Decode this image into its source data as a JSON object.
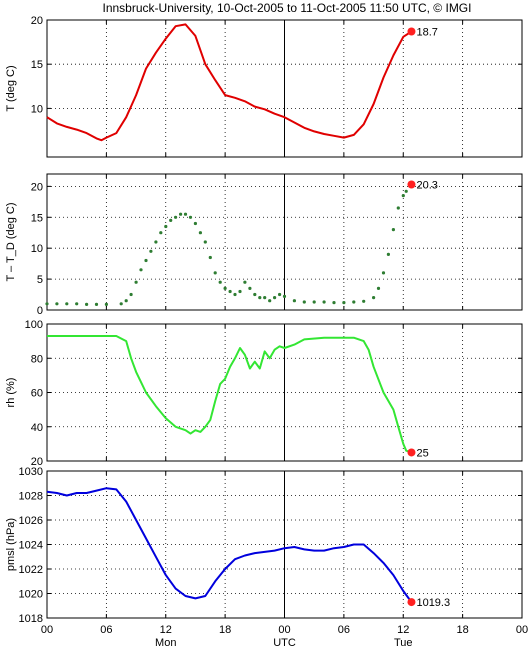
{
  "title": "Innsbruck-University, 10-Oct-2005 to 11-Oct-2005 11:50 UTC, © IMGI",
  "x_axis": {
    "range": [
      0,
      48
    ],
    "ticks": [
      0,
      6,
      12,
      18,
      24,
      30,
      36,
      42,
      48
    ],
    "tick_labels": [
      "00",
      "06",
      "12",
      "18",
      "00",
      "06",
      "12",
      "18",
      "00"
    ],
    "day_labels": [
      {
        "hour": 12,
        "label": "Mon"
      },
      {
        "hour": 24,
        "label": "UTC"
      },
      {
        "hour": 36,
        "label": "Tue"
      }
    ]
  },
  "chart_data": [
    {
      "type": "line",
      "ylabel": "T (deg C)",
      "color": "#e00000",
      "ylim": [
        4.5,
        20
      ],
      "yticks": [
        10,
        15,
        20
      ],
      "grid": true,
      "end_label": "18.7",
      "end": {
        "x": 36.83,
        "y": 18.7
      },
      "x": [
        0,
        1,
        2,
        3,
        4,
        5,
        5.5,
        6,
        7,
        8,
        9,
        10,
        11,
        12,
        13,
        14,
        15,
        16,
        17,
        18,
        19,
        20,
        21,
        22,
        23,
        24,
        25,
        26,
        27,
        28,
        29,
        30,
        31,
        32,
        33,
        34,
        35,
        36,
        36.83
      ],
      "y": [
        9.0,
        8.3,
        7.9,
        7.6,
        7.2,
        6.6,
        6.4,
        6.7,
        7.2,
        9.0,
        11.5,
        14.5,
        16.3,
        17.9,
        19.3,
        19.5,
        18.2,
        15.0,
        13.2,
        11.5,
        11.2,
        10.8,
        10.2,
        9.9,
        9.4,
        9.0,
        8.4,
        7.8,
        7.4,
        7.1,
        6.9,
        6.7,
        7.0,
        8.2,
        10.5,
        13.5,
        16.0,
        18.1,
        18.7
      ]
    },
    {
      "type": "scatter",
      "ylabel": "T – T_D (deg C)",
      "color": "#2e7d32",
      "ylim": [
        0,
        22
      ],
      "yticks": [
        0,
        5,
        10,
        15,
        20
      ],
      "grid": true,
      "end_label": "20.3",
      "end": {
        "x": 36.83,
        "y": 20.3
      },
      "x": [
        0,
        1,
        2,
        3,
        4,
        5,
        6,
        7.5,
        8,
        8.5,
        9,
        9.5,
        10,
        10.5,
        11,
        11.5,
        12,
        12.5,
        13,
        13.5,
        14,
        14.5,
        15,
        15.5,
        16,
        16.5,
        17,
        17.5,
        18,
        18.5,
        19,
        19.5,
        20,
        20.5,
        21,
        21.5,
        22,
        22.5,
        23,
        23.5,
        24,
        25,
        26,
        27,
        28,
        29,
        30,
        31,
        32,
        33,
        33.5,
        34,
        34.5,
        35,
        35.5,
        36,
        36.3,
        36.83
      ],
      "y": [
        1.0,
        1.0,
        1.0,
        1.0,
        0.9,
        0.9,
        0.9,
        1.0,
        1.5,
        2.5,
        4.5,
        6.5,
        8.0,
        9.5,
        11.0,
        12.5,
        13.5,
        14.5,
        15.0,
        15.5,
        15.5,
        15.0,
        14.0,
        12.5,
        11.0,
        8.5,
        6.0,
        4.5,
        3.5,
        3.0,
        2.5,
        3.0,
        4.5,
        3.5,
        2.5,
        2.0,
        2.0,
        1.5,
        2.0,
        2.5,
        2.2,
        1.5,
        1.3,
        1.3,
        1.3,
        1.2,
        1.2,
        1.3,
        1.4,
        2.0,
        3.5,
        6.0,
        9.0,
        13.0,
        16.5,
        18.5,
        19.2,
        20.3
      ]
    },
    {
      "type": "line",
      "ylabel": "rh (%)",
      "color": "#33e633",
      "ylim": [
        20,
        100
      ],
      "yticks": [
        20,
        40,
        60,
        80,
        100
      ],
      "grid": true,
      "end_label": "25",
      "end": {
        "x": 36.83,
        "y": 25
      },
      "x": [
        0,
        2,
        4,
        6,
        7,
        8,
        8.5,
        9,
        10,
        11,
        12,
        13,
        14,
        14.5,
        15,
        15.5,
        16,
        16.5,
        17,
        17.5,
        18,
        18.5,
        19,
        19.5,
        20,
        20.5,
        21,
        21.5,
        22,
        22.5,
        23,
        23.5,
        24,
        25,
        26,
        28,
        30,
        31,
        32,
        32.5,
        33,
        34,
        35,
        35.5,
        36,
        36.3,
        36.83
      ],
      "y": [
        93,
        93,
        93,
        93,
        93,
        90,
        80,
        72,
        60,
        52,
        45,
        40,
        38,
        36,
        38,
        37,
        40,
        44,
        55,
        65,
        68,
        75,
        80,
        86,
        82,
        74,
        78,
        74,
        84,
        80,
        85,
        87,
        86,
        88,
        91,
        92,
        92,
        92,
        90,
        85,
        75,
        60,
        50,
        40,
        30,
        26,
        25
      ]
    },
    {
      "type": "line",
      "ylabel": "pmsl (hPa)",
      "color": "#0000dd",
      "ylim": [
        1018,
        1030
      ],
      "yticks": [
        1018,
        1020,
        1022,
        1024,
        1026,
        1028,
        1030
      ],
      "grid": true,
      "end_label": "1019.3",
      "end": {
        "x": 36.83,
        "y": 1019.3
      },
      "x": [
        0,
        1,
        2,
        3,
        4,
        5,
        6,
        7,
        8,
        9,
        10,
        11,
        12,
        13,
        14,
        15,
        16,
        17,
        18,
        19,
        20,
        21,
        22,
        23,
        24,
        25,
        26,
        27,
        28,
        29,
        30,
        31,
        32,
        33,
        34,
        35,
        36,
        36.83
      ],
      "y": [
        1028.3,
        1028.2,
        1028.0,
        1028.2,
        1028.2,
        1028.4,
        1028.6,
        1028.5,
        1027.5,
        1026.0,
        1024.5,
        1023.0,
        1021.5,
        1020.4,
        1019.8,
        1019.6,
        1019.8,
        1021.0,
        1022.0,
        1022.8,
        1023.1,
        1023.3,
        1023.4,
        1023.5,
        1023.7,
        1023.8,
        1023.6,
        1023.5,
        1023.5,
        1023.7,
        1023.8,
        1024.0,
        1024.0,
        1023.3,
        1022.5,
        1021.5,
        1020.2,
        1019.3
      ]
    }
  ]
}
